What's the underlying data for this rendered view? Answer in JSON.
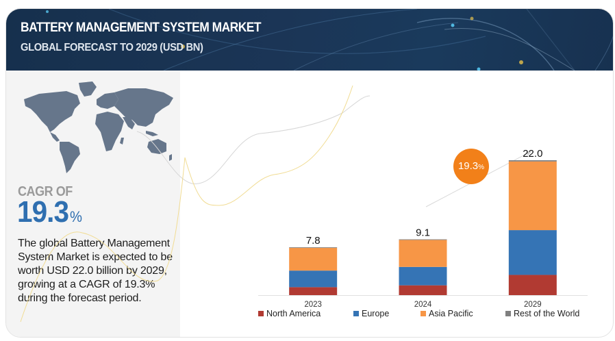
{
  "header": {
    "title": "BATTERY MANAGEMENT SYSTEM MARKET",
    "subtitle": "GLOBAL FORECAST TO 2029 (USD BN)"
  },
  "left_panel": {
    "cagr_label": "CAGR OF",
    "cagr_value": "19.3",
    "cagr_unit": "%",
    "description": "The global Battery Management System Market is expected to be worth USD 22.0 billion by 2029, growing at a CAGR of 19.3% during the forecast period.",
    "map_icon": "world-map-icon"
  },
  "badge": {
    "value": "19.3",
    "unit": "%"
  },
  "colors": {
    "north_america": "#b13a32",
    "europe": "#3574b5",
    "asia_pacific": "#f79646",
    "rest_of_world": "#7f7f7f",
    "badge": "#f28019",
    "header_bg": "#1a3556",
    "cagr_blue": "#2f6fb0"
  },
  "chart_data": {
    "type": "bar",
    "stacked": true,
    "title": "BATTERY MANAGEMENT SYSTEM MARKET",
    "subtitle": "GLOBAL FORECAST TO 2029 (USD BN)",
    "xlabel": "",
    "ylabel": "",
    "categories": [
      "2023",
      "2024",
      "2029"
    ],
    "totals": [
      "7.8",
      "9.1",
      "22.0"
    ],
    "series": [
      {
        "name": "North America",
        "color": "#b13a32",
        "values": [
          1.3,
          1.6,
          3.3
        ]
      },
      {
        "name": "Europe",
        "color": "#3574b5",
        "values": [
          2.7,
          3.0,
          7.3
        ]
      },
      {
        "name": "Asia Pacific",
        "color": "#f79646",
        "values": [
          3.7,
          4.4,
          11.2
        ]
      },
      {
        "name": "Rest of the World",
        "color": "#7f7f7f",
        "values": [
          0.1,
          0.1,
          0.2
        ]
      }
    ],
    "ylim": [
      0,
      22
    ],
    "grid": false,
    "legend_position": "bottom",
    "annotation": "19.3%"
  }
}
